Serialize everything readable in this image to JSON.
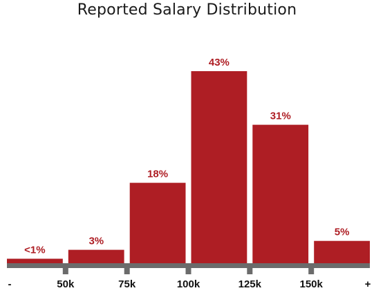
{
  "chart_data": {
    "type": "bar",
    "title": "Reported Salary Distribution",
    "categories": [
      "- to 50k",
      "50k to 75k",
      "75k to 100k",
      "100k to 125k",
      "125k to 150k",
      "150k to +"
    ],
    "values": [
      1,
      3,
      18,
      43,
      31,
      5
    ],
    "data_labels": [
      "<1%",
      "3%",
      "18%",
      "43%",
      "31%",
      "5%"
    ],
    "tick_labels": [
      "-",
      "50k",
      "75k",
      "100k",
      "125k",
      "150k",
      "+"
    ],
    "xlabel": "",
    "ylabel": "",
    "ylim": [
      0,
      43
    ],
    "grid": false,
    "legend": "none",
    "colors": {
      "bar": "#ae1e24",
      "label": "#ae1e24",
      "axis": "#6b6b6b",
      "tick_text": "#111111"
    }
  }
}
